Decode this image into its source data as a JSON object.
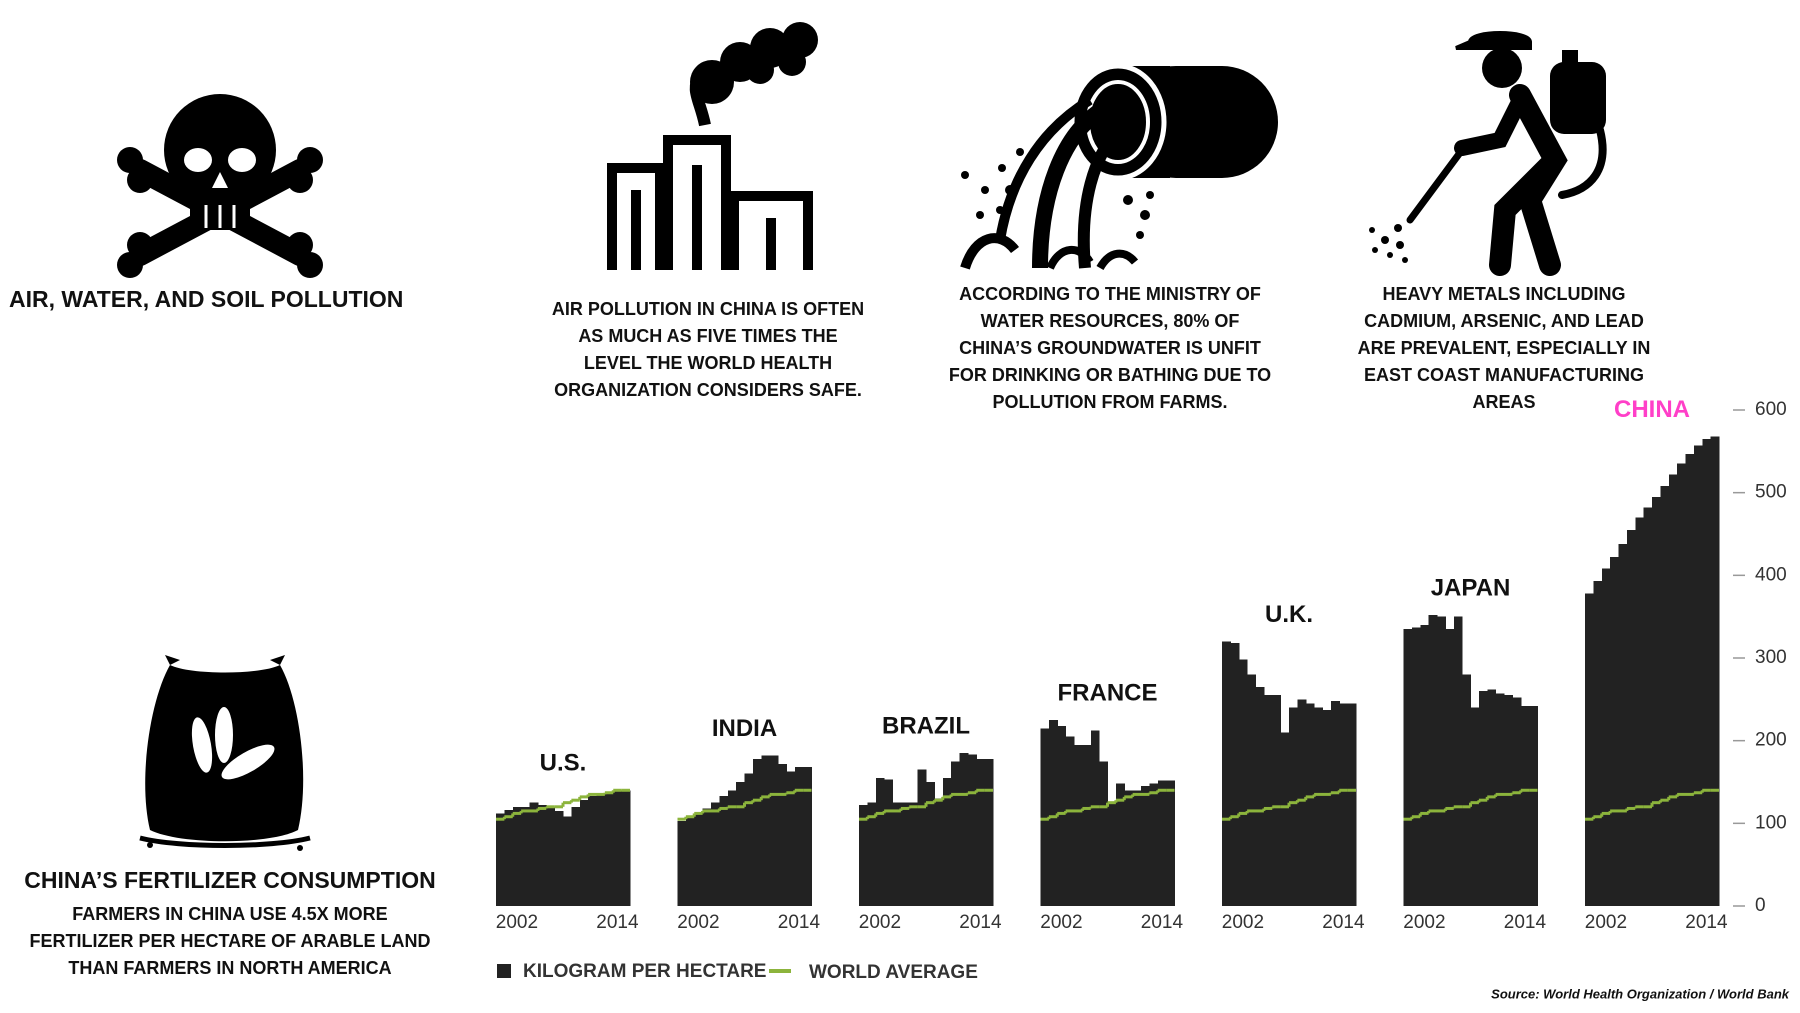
{
  "infographic": {
    "headline": "AIR, WATER, AND SOIL POLLUTION",
    "facts": [
      {
        "lines": [
          "AIR POLLUTION IN CHINA IS OFTEN",
          "AS MUCH AS FIVE TIMES THE",
          "LEVEL THE WORLD HEALTH",
          "ORGANIZATION CONSIDERS SAFE."
        ]
      },
      {
        "lines": [
          "ACCORDING TO THE MINISTRY OF",
          "WATER RESOURCES, 80% OF",
          "CHINA’S GROUNDWATER IS UNFIT",
          "FOR DRINKING OR BATHING DUE TO",
          "POLLUTION FROM FARMS."
        ]
      },
      {
        "lines": [
          "HEAVY METALS INCLUDING",
          "CADMIUM, ARSENIC, AND LEAD",
          "ARE PREVALENT, ESPECIALLY IN",
          "EAST COAST MANUFACTURING",
          "AREAS"
        ]
      }
    ],
    "fertilizer": {
      "title": "CHINA’S FERTILIZER CONSUMPTION",
      "lines": [
        "FARMERS IN CHINA USE 4.5X MORE",
        "FERTILIZER PER HECTARE OF ARABLE LAND",
        "THAN FARMERS IN NORTH AMERICA"
      ]
    },
    "source": "Source: World Health Organization / World Bank"
  },
  "chart_data": {
    "type": "step-area",
    "x": [
      2000,
      2001,
      2002,
      2003,
      2004,
      2005,
      2006,
      2007,
      2008,
      2009,
      2010,
      2011,
      2012,
      2013,
      2014,
      2015
    ],
    "xlim": [
      2000,
      2016
    ],
    "xticks": [
      2002,
      2014
    ],
    "ylim": [
      0,
      600
    ],
    "yticks": [
      0,
      100,
      200,
      300,
      400,
      500,
      600
    ],
    "series": [
      {
        "name": "KILOGRAM PER HECTARE",
        "color": "#222222"
      },
      {
        "name": "WORLD AVERAGE",
        "color": "#8cb43c",
        "values": [
          105,
          108,
          112,
          115,
          115,
          118,
          120,
          120,
          125,
          128,
          132,
          135,
          135,
          137,
          140,
          140
        ]
      }
    ],
    "panels": [
      {
        "title": "U.S.",
        "title_color": "#111111",
        "values": [
          112,
          116,
          120,
          120,
          125,
          122,
          120,
          115,
          108,
          120,
          128,
          133,
          135,
          137,
          140,
          140
        ]
      },
      {
        "title": "INDIA",
        "title_color": "#111111",
        "values": [
          103,
          108,
          113,
          118,
          125,
          133,
          140,
          150,
          160,
          178,
          182,
          182,
          172,
          163,
          168,
          168
        ]
      },
      {
        "title": "BRAZIL",
        "title_color": "#111111",
        "values": [
          122,
          125,
          155,
          153,
          125,
          125,
          125,
          165,
          150,
          130,
          155,
          175,
          185,
          183,
          178,
          178
        ]
      },
      {
        "title": "FRANCE",
        "title_color": "#111111",
        "values": [
          215,
          225,
          218,
          205,
          195,
          195,
          212,
          175,
          125,
          148,
          140,
          140,
          145,
          148,
          152,
          152
        ]
      },
      {
        "title": "U.K.",
        "title_color": "#111111",
        "values": [
          320,
          318,
          298,
          280,
          265,
          255,
          255,
          210,
          240,
          250,
          245,
          240,
          237,
          248,
          245,
          245
        ]
      },
      {
        "title": "JAPAN",
        "title_color": "#111111",
        "values": [
          335,
          337,
          340,
          352,
          350,
          335,
          350,
          280,
          240,
          260,
          262,
          257,
          255,
          252,
          242,
          242
        ]
      },
      {
        "title": "CHINA",
        "title_color": "#ff3fc8",
        "values": [
          378,
          393,
          408,
          422,
          438,
          455,
          470,
          482,
          495,
          508,
          522,
          535,
          547,
          557,
          565,
          568
        ]
      }
    ]
  }
}
